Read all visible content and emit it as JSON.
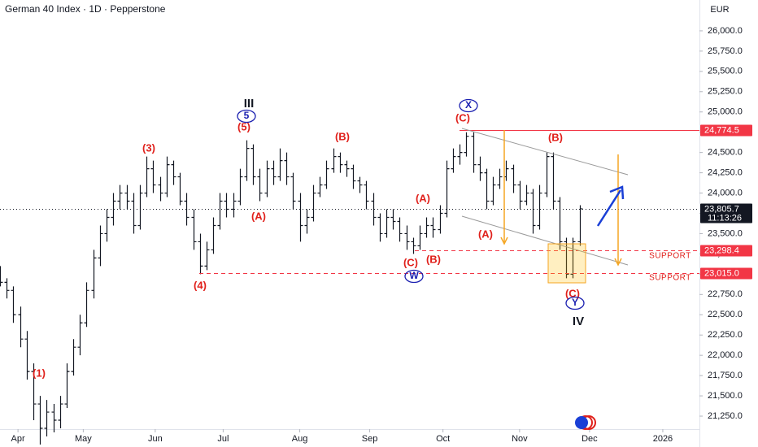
{
  "chart_data": {
    "type": "ohlc",
    "title": "German 40 Index · 1D · Pepperstone",
    "currency": "EUR",
    "color": "#131722",
    "ylim": [
      21100,
      26380
    ],
    "yticks": [
      {
        "value": 21250,
        "label": "21,250.0"
      },
      {
        "value": 21500,
        "label": "21,500.0"
      },
      {
        "value": 21750,
        "label": "21,750.0"
      },
      {
        "value": 22000,
        "label": "22,000.0"
      },
      {
        "value": 22250,
        "label": "22,250.0"
      },
      {
        "value": 22500,
        "label": "22,500.0"
      },
      {
        "value": 22750,
        "label": "22,750.0"
      },
      {
        "value": 23000,
        "label": "23,000.0"
      },
      {
        "value": 23250,
        "label": "23,250.0"
      },
      {
        "value": 23500,
        "label": "23,500.0"
      },
      {
        "value": 23750,
        "label": "23,750.0"
      },
      {
        "value": 24000,
        "label": "24,000.0"
      },
      {
        "value": 24250,
        "label": "24,250.0"
      },
      {
        "value": 24500,
        "label": "24,500.0"
      },
      {
        "value": 24750,
        "label": "24,750.0"
      },
      {
        "value": 25000,
        "label": "25,000.0"
      },
      {
        "value": 25250,
        "label": "25,250.0"
      },
      {
        "value": 25500,
        "label": "25,500.0"
      },
      {
        "value": 25750,
        "label": "25,750.0"
      },
      {
        "value": 26000,
        "label": "26,000.0"
      }
    ],
    "xlim": [
      0,
      210
    ],
    "xticks": [
      {
        "value": 5.4,
        "label": "Apr"
      },
      {
        "value": 25,
        "label": "May"
      },
      {
        "value": 46.6,
        "label": "Jun"
      },
      {
        "value": 67,
        "label": "Jul"
      },
      {
        "value": 90,
        "label": "Aug"
      },
      {
        "value": 111,
        "label": "Sep"
      },
      {
        "value": 133,
        "label": "Oct"
      },
      {
        "value": 156,
        "label": "Nov"
      },
      {
        "value": 177,
        "label": "Dec"
      },
      {
        "value": 199,
        "label": "2026"
      }
    ],
    "x": [
      0,
      2,
      4,
      6,
      8,
      10,
      12,
      14,
      16,
      18,
      20,
      22,
      24,
      26,
      28,
      30,
      32,
      34,
      36,
      38,
      40,
      42,
      44,
      46,
      48,
      50,
      52,
      54,
      56,
      58,
      60,
      62,
      64,
      66,
      68,
      70,
      72,
      74,
      76,
      78,
      80,
      82,
      84,
      86,
      88,
      90,
      92,
      94,
      96,
      98,
      100,
      102,
      104,
      106,
      108,
      110,
      112,
      114,
      116,
      118,
      120,
      122,
      124,
      126,
      128,
      130,
      132,
      134,
      136,
      138,
      140,
      142,
      144,
      146,
      148,
      150,
      152,
      154,
      156,
      158,
      160,
      162,
      164,
      166,
      168,
      170,
      172,
      174
    ],
    "bars": [
      [
        23000,
        23100,
        22850,
        22900
      ],
      [
        22900,
        22950,
        22700,
        22800
      ],
      [
        22800,
        22850,
        22400,
        22500
      ],
      [
        22500,
        22600,
        22100,
        22200
      ],
      [
        22200,
        22300,
        21700,
        21800
      ],
      [
        21800,
        21900,
        21200,
        21400
      ],
      [
        21400,
        21500,
        20900,
        21100
      ],
      [
        21100,
        21450,
        21000,
        21300
      ],
      [
        21300,
        21400,
        21050,
        21200
      ],
      [
        21200,
        21500,
        21100,
        21400
      ],
      [
        21400,
        21900,
        21350,
        21800
      ],
      [
        21800,
        22200,
        21750,
        22100
      ],
      [
        22100,
        22500,
        22000,
        22400
      ],
      [
        22400,
        22900,
        22350,
        22800
      ],
      [
        22800,
        23300,
        22700,
        23200
      ],
      [
        23200,
        23600,
        23100,
        23500
      ],
      [
        23500,
        23800,
        23400,
        23700
      ],
      [
        23700,
        24000,
        23600,
        23900
      ],
      [
        23900,
        24100,
        23800,
        24000
      ],
      [
        24000,
        24100,
        23800,
        23900
      ],
      [
        23900,
        24000,
        23500,
        23600
      ],
      [
        23600,
        24100,
        23550,
        24000
      ],
      [
        24000,
        24450,
        23950,
        24300
      ],
      [
        24300,
        24400,
        24000,
        24100
      ],
      [
        24100,
        24200,
        23900,
        24000
      ],
      [
        24000,
        24450,
        23950,
        24350
      ],
      [
        24350,
        24400,
        24100,
        24200
      ],
      [
        24200,
        24250,
        23850,
        23900
      ],
      [
        23900,
        24000,
        23600,
        23700
      ],
      [
        23700,
        23800,
        23300,
        23400
      ],
      [
        23400,
        23500,
        23000,
        23100
      ],
      [
        23100,
        23400,
        23050,
        23300
      ],
      [
        23300,
        23700,
        23250,
        23600
      ],
      [
        23600,
        24000,
        23550,
        23900
      ],
      [
        23900,
        24000,
        23700,
        23800
      ],
      [
        23800,
        24000,
        23700,
        23900
      ],
      [
        23900,
        24300,
        23850,
        24200
      ],
      [
        24200,
        24650,
        24150,
        24550
      ],
      [
        24550,
        24600,
        24100,
        24200
      ],
      [
        24200,
        24300,
        23900,
        24000
      ],
      [
        24000,
        24400,
        23950,
        24300
      ],
      [
        24300,
        24400,
        24100,
        24200
      ],
      [
        24200,
        24550,
        24150,
        24400
      ],
      [
        24400,
        24500,
        24100,
        24200
      ],
      [
        24200,
        24250,
        23800,
        23900
      ],
      [
        23900,
        24000,
        23400,
        23600
      ],
      [
        23600,
        23800,
        23500,
        23700
      ],
      [
        23700,
        24100,
        23650,
        24000
      ],
      [
        24000,
        24200,
        23950,
        24100
      ],
      [
        24100,
        24400,
        24050,
        24300
      ],
      [
        24300,
        24550,
        24250,
        24450
      ],
      [
        24450,
        24500,
        24250,
        24350
      ],
      [
        24350,
        24400,
        24200,
        24300
      ],
      [
        24300,
        24350,
        24050,
        24150
      ],
      [
        24150,
        24200,
        24000,
        24100
      ],
      [
        24100,
        24150,
        23800,
        23900
      ],
      [
        23900,
        24000,
        23600,
        23700
      ],
      [
        23700,
        23750,
        23400,
        23500
      ],
      [
        23500,
        23800,
        23450,
        23700
      ],
      [
        23700,
        23800,
        23550,
        23650
      ],
      [
        23650,
        23700,
        23400,
        23500
      ],
      [
        23500,
        23600,
        23300,
        23400
      ],
      [
        23400,
        23450,
        23250,
        23350
      ],
      [
        23350,
        23600,
        23300,
        23500
      ],
      [
        23500,
        23700,
        23450,
        23600
      ],
      [
        23600,
        23700,
        23450,
        23550
      ],
      [
        23550,
        23850,
        23500,
        23750
      ],
      [
        23750,
        24400,
        23700,
        24300
      ],
      [
        24300,
        24550,
        24250,
        24450
      ],
      [
        24450,
        24600,
        24350,
        24500
      ],
      [
        24500,
        24750,
        24450,
        24700
      ],
      [
        24700,
        24750,
        24250,
        24350
      ],
      [
        24350,
        24450,
        24150,
        24250
      ],
      [
        24250,
        24300,
        23800,
        23900
      ],
      [
        23900,
        24200,
        23850,
        24100
      ],
      [
        24100,
        24300,
        24050,
        24200
      ],
      [
        24200,
        24400,
        24150,
        24300
      ],
      [
        24300,
        24350,
        24000,
        24100
      ],
      [
        24100,
        24150,
        23800,
        23900
      ],
      [
        23900,
        24100,
        23850,
        24000
      ],
      [
        24000,
        24050,
        23500,
        23600
      ],
      [
        23600,
        24100,
        23550,
        24000
      ],
      [
        24000,
        24500,
        23950,
        24450
      ],
      [
        24450,
        24500,
        23800,
        23900
      ],
      [
        23900,
        23950,
        23300,
        23400
      ],
      [
        23400,
        23450,
        22950,
        23000
      ],
      [
        23000,
        23450,
        22950,
        23400
      ],
      [
        23400,
        23850,
        23350,
        23805.7
      ]
    ],
    "price_lines": [
      {
        "value": 24774.5,
        "label": "24,774.5",
        "color": "#f23645",
        "style": "solid"
      },
      {
        "value": 23805.7,
        "label": "23,805.7",
        "color": "#131722",
        "style": "dotted"
      },
      {
        "value": 23298.4,
        "label": "23,298.4",
        "color": "#f23645",
        "style": "dashed"
      },
      {
        "value": 23015.0,
        "label": "23,015.0",
        "color": "#f23645",
        "style": "dashed"
      }
    ],
    "countdown": "11:13:26",
    "annotations": [
      {
        "text": "(1)",
        "color": "#e0201b"
      },
      {
        "text": "(3)",
        "color": "#e0201b"
      },
      {
        "text": "(4)",
        "color": "#e0201b"
      },
      {
        "text": "III",
        "color": "#131722"
      },
      {
        "text": "5",
        "color": "#1a1fb0",
        "circled": true
      },
      {
        "text": "(5)",
        "color": "#e0201b"
      },
      {
        "text": "(A)",
        "color": "#e0201b"
      },
      {
        "text": "(B)",
        "color": "#e0201b"
      },
      {
        "text": "(A)",
        "color": "#e0201b"
      },
      {
        "text": "(C)",
        "color": "#e0201b"
      },
      {
        "text": "(B)",
        "color": "#e0201b"
      },
      {
        "text": "W",
        "color": "#1a1fb0",
        "circled": true
      },
      {
        "text": "X",
        "color": "#1a1fb0",
        "circled": true
      },
      {
        "text": "(C)",
        "color": "#e0201b"
      },
      {
        "text": "(A)",
        "color": "#e0201b"
      },
      {
        "text": "(B)",
        "color": "#e0201b"
      },
      {
        "text": "(C)",
        "color": "#e0201b"
      },
      {
        "text": "Y",
        "color": "#1a1fb0",
        "circled": true
      },
      {
        "text": "IV",
        "color": "#131722"
      },
      {
        "text": "SUPPORT",
        "color": "#e0201b"
      },
      {
        "text": "SUPPORT",
        "color": "#e0201b"
      }
    ]
  }
}
